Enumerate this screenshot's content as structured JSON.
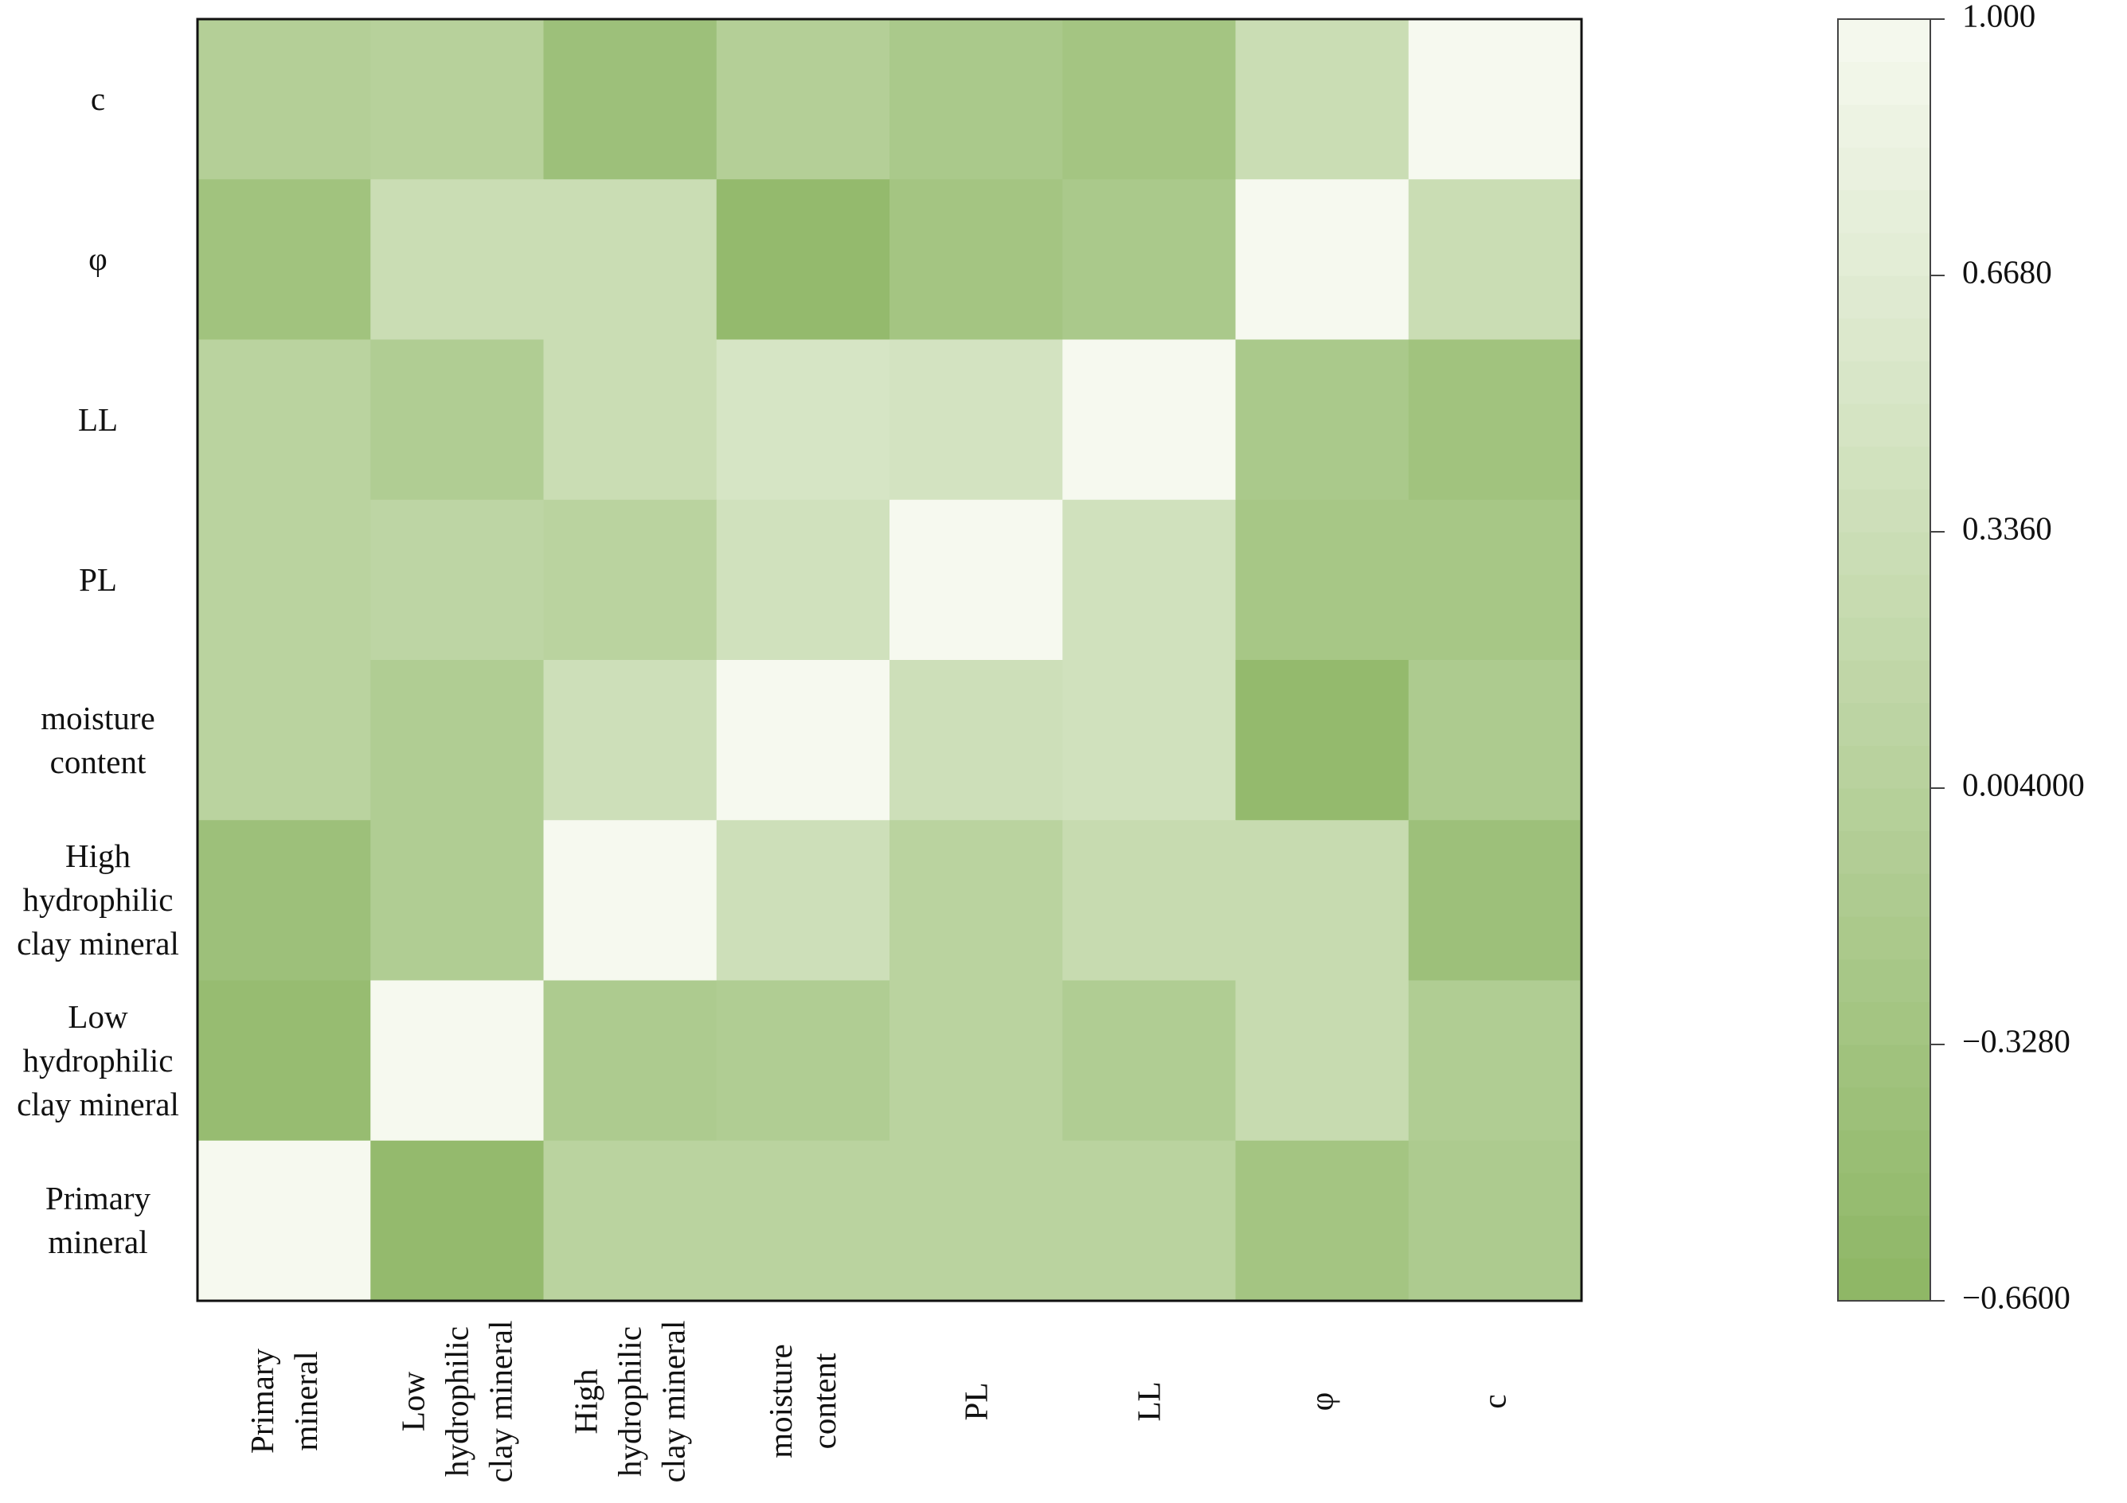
{
  "chart_data": {
    "type": "heatmap",
    "x_categories": [
      "Primary mineral",
      "Low hydrophilic clay mineral",
      "High hydrophilic clay mineral",
      "moisture content",
      "PL",
      "LL",
      "φ",
      "c"
    ],
    "y_categories": [
      "c",
      "φ",
      "LL",
      "PL",
      "moisture content",
      "High hydrophilic clay mineral",
      "Low hydrophilic clay mineral",
      "Primary mineral"
    ],
    "values": [
      [
        -0.05,
        0.0,
        -0.4,
        -0.05,
        -0.2,
        -0.3,
        0.3,
        1.0
      ],
      [
        -0.35,
        0.3,
        0.3,
        -0.55,
        -0.3,
        -0.2,
        1.0,
        0.3
      ],
      [
        0.05,
        -0.1,
        0.3,
        0.5,
        0.45,
        1.0,
        -0.2,
        -0.35
      ],
      [
        0.05,
        0.1,
        0.05,
        0.4,
        1.0,
        0.4,
        -0.25,
        -0.25
      ],
      [
        0.05,
        -0.1,
        0.35,
        1.0,
        0.35,
        0.4,
        -0.55,
        -0.15
      ],
      [
        -0.4,
        -0.1,
        1.0,
        0.35,
        0.05,
        0.25,
        0.25,
        -0.4
      ],
      [
        -0.5,
        1.0,
        -0.15,
        -0.1,
        0.05,
        -0.1,
        0.25,
        -0.1
      ],
      [
        1.0,
        -0.55,
        0.05,
        0.05,
        0.05,
        0.05,
        -0.3,
        -0.15
      ]
    ],
    "colorscale": [
      "#8db664",
      "#f6f9ef"
    ],
    "clim": [
      -0.66,
      1.0
    ],
    "cticks": [
      {
        "value": 1.0,
        "label": "1.000"
      },
      {
        "value": 0.668,
        "label": "0.6680"
      },
      {
        "value": 0.336,
        "label": "0.3360"
      },
      {
        "value": 0.004,
        "label": "0.004000"
      },
      {
        "value": -0.328,
        "label": "−0.3280"
      },
      {
        "value": -0.66,
        "label": "−0.6600"
      }
    ]
  }
}
